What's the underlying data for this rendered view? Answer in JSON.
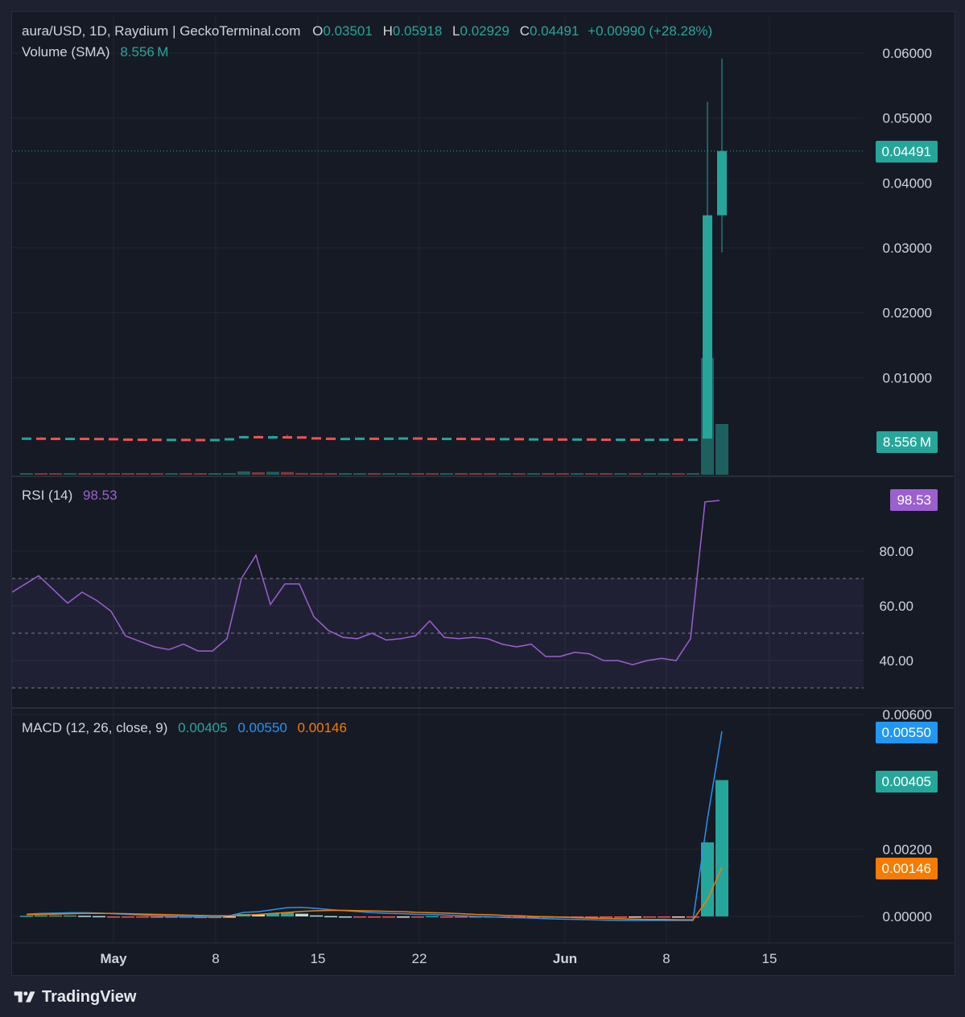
{
  "header": {
    "symbol": "aura/USD, 1D, Raydium | GeckoTerminal.com",
    "o_label": "O",
    "o_value": "0.03501",
    "h_label": "H",
    "h_value": "0.05918",
    "l_label": "L",
    "l_value": "0.02929",
    "c_label": "C",
    "c_value": "0.04491",
    "change": "+0.00990 (+28.28%)"
  },
  "volume_legend": {
    "label": "Volume (SMA)",
    "value": "8.556 M"
  },
  "rsi_legend": {
    "label": "RSI (14)",
    "value": "98.53"
  },
  "macd_legend": {
    "label": "MACD (12, 26, close, 9)",
    "hist": "0.00405",
    "macd": "0.00550",
    "signal": "0.00146"
  },
  "tags": {
    "price": "0.04491",
    "volume": "8.556 M",
    "rsi": "98.53",
    "macd": "0.00550",
    "hist": "0.00405",
    "signal": "0.00146"
  },
  "brand": "TradingView",
  "colors": {
    "up": "#26a69a",
    "down": "#ef5350",
    "rsi": "#9c5fcf",
    "macd": "#2962ff",
    "signal": "#f57c00",
    "text": "#d1d4dc",
    "grid": "#232735"
  },
  "chart_data": [
    {
      "type": "candlestick",
      "title": "aura/USD, 1D, Raydium",
      "ylim": [
        0,
        0.065
      ],
      "y_ticks": [
        "0.06000",
        "0.05000",
        "0.04000",
        "0.03000",
        "0.02000",
        "0.01000"
      ],
      "x_ticks": [
        "May",
        "8",
        "15",
        "22",
        "Jun",
        "8",
        "15"
      ],
      "candles": [
        {
          "o": 0.00075,
          "h": 0.00078,
          "l": 0.00071,
          "c": 0.00077
        },
        {
          "o": 0.00077,
          "h": 0.0008,
          "l": 0.00073,
          "c": 0.00075
        },
        {
          "o": 0.00075,
          "h": 0.00077,
          "l": 0.00071,
          "c": 0.00073
        },
        {
          "o": 0.00073,
          "h": 0.00076,
          "l": 0.0007,
          "c": 0.00074
        },
        {
          "o": 0.00074,
          "h": 0.00076,
          "l": 0.0007,
          "c": 0.00072
        },
        {
          "o": 0.00072,
          "h": 0.00074,
          "l": 0.00068,
          "c": 0.0007
        },
        {
          "o": 0.0007,
          "h": 0.00072,
          "l": 0.0006,
          "c": 0.00063
        },
        {
          "o": 0.00063,
          "h": 0.00065,
          "l": 0.00059,
          "c": 0.00061
        },
        {
          "o": 0.00061,
          "h": 0.00063,
          "l": 0.00057,
          "c": 0.00059
        },
        {
          "o": 0.00059,
          "h": 0.00061,
          "l": 0.00055,
          "c": 0.00057
        },
        {
          "o": 0.00057,
          "h": 0.0006,
          "l": 0.00054,
          "c": 0.00058
        },
        {
          "o": 0.00058,
          "h": 0.0006,
          "l": 0.00054,
          "c": 0.00056
        },
        {
          "o": 0.00056,
          "h": 0.00058,
          "l": 0.00052,
          "c": 0.00054
        },
        {
          "o": 0.00054,
          "h": 0.00057,
          "l": 0.00052,
          "c": 0.00056
        },
        {
          "o": 0.00056,
          "h": 0.0007,
          "l": 0.00055,
          "c": 0.00068
        },
        {
          "o": 0.00068,
          "h": 0.00105,
          "l": 0.00065,
          "c": 0.001
        },
        {
          "o": 0.001,
          "h": 0.0011,
          "l": 0.00075,
          "c": 0.0008
        },
        {
          "o": 0.0008,
          "h": 0.00105,
          "l": 0.00078,
          "c": 0.00098
        },
        {
          "o": 0.00098,
          "h": 0.0012,
          "l": 0.0009,
          "c": 0.00096
        },
        {
          "o": 0.00096,
          "h": 0.001,
          "l": 0.0008,
          "c": 0.00082
        },
        {
          "o": 0.00082,
          "h": 0.00085,
          "l": 0.00074,
          "c": 0.00076
        },
        {
          "o": 0.00076,
          "h": 0.00078,
          "l": 0.0007,
          "c": 0.00072
        },
        {
          "o": 0.00072,
          "h": 0.00076,
          "l": 0.0007,
          "c": 0.00073
        },
        {
          "o": 0.00073,
          "h": 0.00078,
          "l": 0.00071,
          "c": 0.00076
        },
        {
          "o": 0.00076,
          "h": 0.00078,
          "l": 0.00072,
          "c": 0.00074
        },
        {
          "o": 0.00074,
          "h": 0.00078,
          "l": 0.00073,
          "c": 0.00076
        },
        {
          "o": 0.00076,
          "h": 0.00082,
          "l": 0.00074,
          "c": 0.0008
        },
        {
          "o": 0.0008,
          "h": 0.00082,
          "l": 0.00072,
          "c": 0.00074
        },
        {
          "o": 0.00074,
          "h": 0.00076,
          "l": 0.00071,
          "c": 0.00073
        },
        {
          "o": 0.00073,
          "h": 0.00075,
          "l": 0.00071,
          "c": 0.00074
        },
        {
          "o": 0.00074,
          "h": 0.00076,
          "l": 0.0007,
          "c": 0.00072
        },
        {
          "o": 0.00072,
          "h": 0.00074,
          "l": 0.0007,
          "c": 0.00071
        },
        {
          "o": 0.00071,
          "h": 0.00073,
          "l": 0.00068,
          "c": 0.00069
        },
        {
          "o": 0.00069,
          "h": 0.00072,
          "l": 0.00067,
          "c": 0.0007
        },
        {
          "o": 0.0007,
          "h": 0.00071,
          "l": 0.00064,
          "c": 0.00065
        },
        {
          "o": 0.00065,
          "h": 0.00067,
          "l": 0.00063,
          "c": 0.00066
        },
        {
          "o": 0.00066,
          "h": 0.00068,
          "l": 0.00063,
          "c": 0.00064
        },
        {
          "o": 0.00064,
          "h": 0.00066,
          "l": 0.00062,
          "c": 0.00063
        },
        {
          "o": 0.00063,
          "h": 0.00065,
          "l": 0.00061,
          "c": 0.00064
        },
        {
          "o": 0.00064,
          "h": 0.00065,
          "l": 0.0006,
          "c": 0.00061
        },
        {
          "o": 0.00061,
          "h": 0.00063,
          "l": 0.00059,
          "c": 0.0006
        },
        {
          "o": 0.0006,
          "h": 0.00062,
          "l": 0.00058,
          "c": 0.00061
        },
        {
          "o": 0.00061,
          "h": 0.00062,
          "l": 0.00058,
          "c": 0.00059
        },
        {
          "o": 0.00059,
          "h": 0.00061,
          "l": 0.00057,
          "c": 0.0006
        },
        {
          "o": 0.0006,
          "h": 0.00062,
          "l": 0.00058,
          "c": 0.00061
        },
        {
          "o": 0.00061,
          "h": 0.00062,
          "l": 0.00058,
          "c": 0.00059
        },
        {
          "o": 0.00059,
          "h": 0.00062,
          "l": 0.00058,
          "c": 0.00061
        },
        {
          "o": 0.00061,
          "h": 0.0525,
          "l": 0.00058,
          "c": 0.03501
        },
        {
          "o": 0.03501,
          "h": 0.05918,
          "l": 0.02929,
          "c": 0.04491
        }
      ],
      "volume": [
        0.15,
        0.12,
        0.1,
        0.11,
        0.09,
        0.1,
        0.12,
        0.09,
        0.08,
        0.08,
        0.09,
        0.08,
        0.07,
        0.08,
        0.15,
        0.35,
        0.25,
        0.3,
        0.28,
        0.18,
        0.12,
        0.1,
        0.09,
        0.1,
        0.09,
        0.1,
        0.13,
        0.11,
        0.09,
        0.09,
        0.08,
        0.08,
        0.07,
        0.08,
        0.07,
        0.07,
        0.07,
        0.06,
        0.07,
        0.06,
        0.06,
        0.07,
        0.06,
        0.06,
        0.07,
        0.06,
        0.07,
        12.2,
        5.3
      ],
      "volume_sma": 8.556
    },
    {
      "type": "line",
      "title": "RSI (14)",
      "ylim": [
        25,
        102
      ],
      "y_ticks": [
        "80.00",
        "60.00",
        "40.00"
      ],
      "bands": [
        30,
        50,
        70
      ],
      "values": [
        65,
        71,
        66,
        61,
        65,
        62,
        58,
        49,
        47,
        45,
        44,
        46,
        43.5,
        43.5,
        48,
        70,
        78.5,
        60.5,
        68,
        68,
        56,
        51,
        48.5,
        48,
        50,
        47.5,
        48,
        49,
        54.5,
        48.5,
        48,
        48.5,
        48,
        46,
        45,
        46,
        41.5,
        41.5,
        43,
        42.5,
        40,
        40,
        38.5,
        40,
        40.8,
        40,
        48,
        98,
        98.53
      ]
    },
    {
      "type": "bar",
      "title": "MACD (12, 26, close, 9)",
      "ylim": [
        -0.0002,
        0.0062
      ],
      "y_ticks": [
        "0.00600",
        "0.00200",
        "0.00000"
      ],
      "histogram": [
        2e-05,
        3e-05,
        3e-05,
        3e-05,
        2e-05,
        1e-05,
        -1e-05,
        -2e-05,
        -3e-05,
        -4e-05,
        -4e-05,
        -4e-05,
        -5e-05,
        -5e-05,
        -1e-05,
        7e-05,
        6e-05,
        9e-05,
        0.00012,
        8e-05,
        3e-05,
        1e-05,
        0.0,
        -1e-05,
        -2e-05,
        -2e-05,
        -1e-05,
        -1e-05,
        1e-05,
        -1e-05,
        -2e-05,
        -2e-05,
        -2e-05,
        -3e-05,
        -3e-05,
        -3e-05,
        -4e-05,
        -4e-05,
        -4e-05,
        -4e-05,
        -4e-05,
        -4e-05,
        -3e-05,
        -3e-05,
        -3e-05,
        -2e-05,
        -2e-05,
        0.0022,
        0.00405
      ],
      "macd": [
        7e-05,
        9e-05,
        0.0001,
        0.00011,
        0.00011,
        0.0001,
        8e-05,
        6e-05,
        4e-05,
        2e-05,
        1e-05,
        0.0,
        -1e-05,
        -2e-05,
        2e-05,
        0.00012,
        0.00014,
        0.0002,
        0.00026,
        0.00027,
        0.00024,
        0.0002,
        0.00017,
        0.00014,
        0.00011,
        9e-05,
        8e-05,
        6e-05,
        6e-05,
        4e-05,
        2e-05,
        0.0,
        -1e-05,
        -3e-05,
        -4e-05,
        -5e-05,
        -7e-05,
        -8e-05,
        -9e-05,
        -0.0001,
        -0.00011,
        -0.00012,
        -0.00012,
        -0.00012,
        -0.00012,
        -0.00012,
        -0.00012,
        0.0029,
        0.0055
      ],
      "signal": [
        5e-05,
        6e-05,
        7e-05,
        8e-05,
        9e-05,
        9e-05,
        9e-05,
        8e-05,
        7e-05,
        6e-05,
        5e-05,
        4e-05,
        3e-05,
        2e-05,
        2e-05,
        4e-05,
        6e-05,
        9e-05,
        0.00012,
        0.00015,
        0.00017,
        0.00018,
        0.00018,
        0.00017,
        0.00016,
        0.00015,
        0.00014,
        0.00012,
        0.00011,
        0.0001,
        8e-05,
        6e-05,
        5e-05,
        3e-05,
        2e-05,
        0.0,
        -1e-05,
        -2e-05,
        -4e-05,
        -5e-05,
        -6e-05,
        -7e-05,
        -8e-05,
        -9e-05,
        -9e-05,
        -0.0001,
        -0.0001,
        0.0005,
        0.00146
      ]
    }
  ]
}
